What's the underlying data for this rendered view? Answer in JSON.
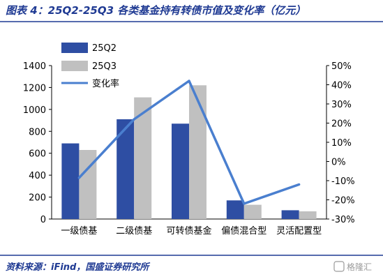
{
  "header": {
    "title": "图表 4：25Q2-25Q3 各类基金持有转债市值及变化率（亿元）"
  },
  "footer": {
    "source": "资料来源：iFind，国盛证券研究所",
    "watermark": "格隆汇"
  },
  "chart_data": {
    "type": "bar",
    "categories": [
      "一级债基",
      "二级债基",
      "可转债基金",
      "偏债混合型",
      "灵活配置型"
    ],
    "series": [
      {
        "name": "25Q2",
        "kind": "bar",
        "axis": "left",
        "color": "#2e4ea3",
        "values": [
          690,
          910,
          870,
          170,
          80
        ]
      },
      {
        "name": "25Q3",
        "kind": "bar",
        "axis": "left",
        "color": "#c0c0c0",
        "values": [
          630,
          1110,
          1220,
          130,
          70
        ]
      },
      {
        "name": "变化率",
        "kind": "line",
        "axis": "right",
        "color": "#4a7fcf",
        "values": [
          -8.5,
          22,
          42,
          -22,
          -12
        ]
      }
    ],
    "y_left": {
      "min": 0,
      "max": 1400,
      "ticks": [
        "0",
        "200",
        "400",
        "600",
        "800",
        "1000",
        "1200",
        "1400"
      ]
    },
    "y_right": {
      "min": -30,
      "max": 50,
      "ticks": [
        "-30%",
        "-20%",
        "-10%",
        "0%",
        "10%",
        "20%",
        "30%",
        "40%",
        "50%"
      ]
    },
    "grid": false,
    "legend_position": "top-left"
  }
}
